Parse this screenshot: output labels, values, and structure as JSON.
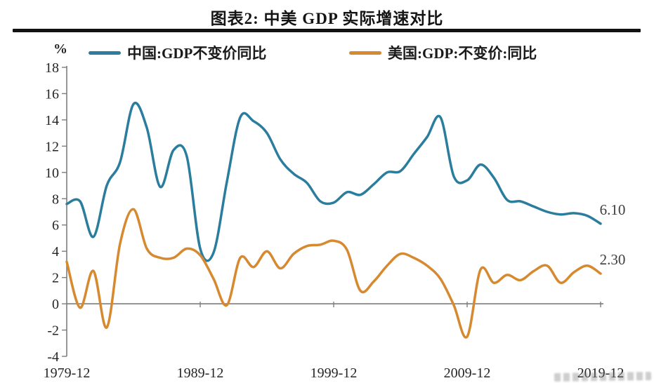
{
  "title": "图表2: 中美 GDP 实际增速对比",
  "y_unit_label": "%",
  "legend": {
    "china": {
      "label": "中国:GDP不变价同比",
      "color": "#2b7d9e"
    },
    "us": {
      "label": "美国:GDP:不变价:同比",
      "color": "#d6892f"
    }
  },
  "chart_data": {
    "type": "line",
    "title": "图表2: 中美 GDP 实际增速对比",
    "xlabel": "",
    "ylabel": "%",
    "grid": false,
    "legend_position": "top",
    "ylim": [
      -4,
      18
    ],
    "y_ticks": [
      -4,
      -2,
      0,
      2,
      4,
      6,
      8,
      10,
      12,
      14,
      16,
      18
    ],
    "x_tick_years": [
      1979,
      1989,
      1999,
      2009,
      2019
    ],
    "x_tick_labels": [
      "1979-12",
      "1989-12",
      "1999-12",
      "2009-12",
      "2019-12"
    ],
    "x": [
      1979,
      1980,
      1981,
      1982,
      1983,
      1984,
      1985,
      1986,
      1987,
      1988,
      1989,
      1990,
      1991,
      1992,
      1993,
      1994,
      1995,
      1996,
      1997,
      1998,
      1999,
      2000,
      2001,
      2002,
      2003,
      2004,
      2005,
      2006,
      2007,
      2008,
      2009,
      2010,
      2011,
      2012,
      2013,
      2014,
      2015,
      2016,
      2017,
      2018,
      2019
    ],
    "series": [
      {
        "name": "中国:GDP不变价同比",
        "color": "#2b7d9e",
        "end_label": "6.10",
        "values": [
          7.6,
          7.8,
          5.1,
          9.0,
          10.8,
          15.2,
          13.4,
          8.9,
          11.7,
          11.2,
          4.2,
          3.9,
          9.3,
          14.2,
          13.9,
          13.0,
          11.0,
          9.9,
          9.2,
          7.8,
          7.7,
          8.5,
          8.3,
          9.1,
          10.0,
          10.1,
          11.4,
          12.7,
          14.2,
          9.7,
          9.4,
          10.6,
          9.6,
          7.9,
          7.8,
          7.4,
          7.0,
          6.8,
          6.9,
          6.7,
          6.1
        ]
      },
      {
        "name": "美国:GDP:不变价:同比",
        "color": "#d6892f",
        "end_label": "2.30",
        "values": [
          3.2,
          -0.3,
          2.5,
          -1.8,
          4.6,
          7.2,
          4.2,
          3.5,
          3.5,
          4.2,
          3.7,
          1.9,
          -0.1,
          3.5,
          2.8,
          4.0,
          2.7,
          3.8,
          4.4,
          4.5,
          4.8,
          4.1,
          1.0,
          1.7,
          2.9,
          3.8,
          3.5,
          2.9,
          1.9,
          -0.1,
          -2.5,
          2.6,
          1.6,
          2.2,
          1.8,
          2.5,
          2.9,
          1.6,
          2.4,
          2.9,
          2.3
        ]
      }
    ],
    "axis_color": "#7d7d7d",
    "tick_label_color": "#262626",
    "end_label_color": "#3d3d3d"
  }
}
